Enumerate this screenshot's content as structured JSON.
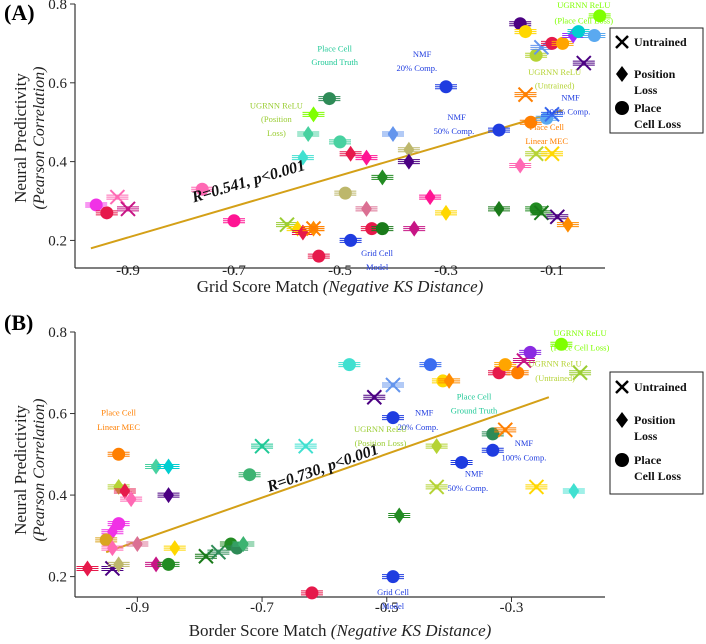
{
  "colors": {
    "trend": "#d4a017",
    "axis": "#333333",
    "palette": [
      "#e6194b",
      "#f032e6",
      "#ff69b4",
      "#9b30ff",
      "#4b0082",
      "#1f3ce0",
      "#3a6cf0",
      "#7b2fd0",
      "#2e8b57",
      "#3cb371",
      "#228b22",
      "#1a7a1a",
      "#48d1a0",
      "#20c997",
      "#7fff00",
      "#9acd32",
      "#b5d334",
      "#ffd700",
      "#ffa500",
      "#ff7f00",
      "#ff4500",
      "#dc143c",
      "#c71585",
      "#db7093",
      "#6495ed",
      "#5aa9f0",
      "#40e0d0",
      "#00ced1",
      "#6a5acd",
      "#8a2be2",
      "#ff1493",
      "#ff8c00",
      "#daa520",
      "#bdb76b",
      "#8fbc8f",
      "#5f9ea0",
      "#4682b4",
      "#bc8f8f",
      "#cd5c5c",
      "#800080"
    ]
  },
  "chart_data": [
    {
      "type": "scatter",
      "panel": "(A)",
      "xlabel": "Grid Score Match",
      "xlabel_italic": "(Negative KS Distance)",
      "ylabel": "Neural Predictivity",
      "ylabel_italic": "(Pearson Correlation)",
      "xlim": [
        -1.0,
        0.0
      ],
      "ylim": [
        0.13,
        0.8
      ],
      "xticks": [
        "-0.9",
        "-0.7",
        "-0.5",
        "-0.3",
        "-0.1"
      ],
      "xtick_values": [
        -0.9,
        -0.7,
        -0.5,
        -0.3,
        -0.1
      ],
      "yticks": [
        "0.2",
        "0.4",
        "0.6",
        "0.8"
      ],
      "ytick_values": [
        0.2,
        0.4,
        0.6,
        0.8
      ],
      "fit": {
        "x": [
          -0.97,
          -0.08
        ],
        "y": [
          0.18,
          0.53
        ],
        "label": "R=0.541, p<0.001"
      },
      "points": [
        {
          "x": -0.96,
          "y": 0.29,
          "m": "o",
          "c": 1
        },
        {
          "x": -0.94,
          "y": 0.27,
          "m": "o",
          "c": 0
        },
        {
          "x": -0.92,
          "y": 0.31,
          "m": "x",
          "c": 2
        },
        {
          "x": -0.9,
          "y": 0.28,
          "m": "x",
          "c": 22
        },
        {
          "x": -0.76,
          "y": 0.33,
          "m": "o",
          "c": 2
        },
        {
          "x": -0.7,
          "y": 0.25,
          "m": "o",
          "c": 30
        },
        {
          "x": -0.6,
          "y": 0.24,
          "m": "x",
          "c": 15
        },
        {
          "x": -0.58,
          "y": 0.23,
          "m": "d",
          "c": 17
        },
        {
          "x": -0.57,
          "y": 0.22,
          "m": "d",
          "c": 0
        },
        {
          "x": -0.55,
          "y": 0.23,
          "m": "d",
          "c": 31
        },
        {
          "x": -0.54,
          "y": 0.16,
          "m": "o",
          "c": 0
        },
        {
          "x": -0.55,
          "y": 0.23,
          "m": "x",
          "c": 19
        },
        {
          "x": -0.52,
          "y": 0.56,
          "m": "o",
          "c": 8
        },
        {
          "x": -0.55,
          "y": 0.52,
          "m": "d",
          "c": 14
        },
        {
          "x": -0.56,
          "y": 0.47,
          "m": "d",
          "c": 12
        },
        {
          "x": -0.57,
          "y": 0.41,
          "m": "d",
          "c": 26
        },
        {
          "x": -0.5,
          "y": 0.45,
          "m": "o",
          "c": 12
        },
        {
          "x": -0.48,
          "y": 0.42,
          "m": "d",
          "c": 0
        },
        {
          "x": -0.45,
          "y": 0.41,
          "m": "d",
          "c": 30
        },
        {
          "x": -0.49,
          "y": 0.32,
          "m": "o",
          "c": 33
        },
        {
          "x": -0.48,
          "y": 0.2,
          "m": "o",
          "c": 5
        },
        {
          "x": -0.45,
          "y": 0.28,
          "m": "d",
          "c": 23
        },
        {
          "x": -0.42,
          "y": 0.36,
          "m": "d",
          "c": 10
        },
        {
          "x": -0.4,
          "y": 0.47,
          "m": "d",
          "c": 24
        },
        {
          "x": -0.37,
          "y": 0.43,
          "m": "d",
          "c": 33
        },
        {
          "x": -0.37,
          "y": 0.4,
          "m": "d",
          "c": 4
        },
        {
          "x": -0.44,
          "y": 0.23,
          "m": "o",
          "c": 0
        },
        {
          "x": -0.42,
          "y": 0.23,
          "m": "o",
          "c": 11
        },
        {
          "x": -0.36,
          "y": 0.23,
          "m": "d",
          "c": 22
        },
        {
          "x": -0.33,
          "y": 0.31,
          "m": "d",
          "c": 30
        },
        {
          "x": -0.3,
          "y": 0.27,
          "m": "d",
          "c": 17
        },
        {
          "x": -0.3,
          "y": 0.59,
          "m": "o",
          "c": 5
        },
        {
          "x": -0.2,
          "y": 0.48,
          "m": "o",
          "c": 5
        },
        {
          "x": -0.2,
          "y": 0.28,
          "m": "d",
          "c": 11
        },
        {
          "x": -0.16,
          "y": 0.39,
          "m": "d",
          "c": 2
        },
        {
          "x": -0.13,
          "y": 0.28,
          "m": "o",
          "c": 10
        },
        {
          "x": -0.12,
          "y": 0.27,
          "m": "x",
          "c": 11
        },
        {
          "x": -0.09,
          "y": 0.26,
          "m": "x",
          "c": 4
        },
        {
          "x": -0.07,
          "y": 0.24,
          "m": "d",
          "c": 31
        },
        {
          "x": -0.13,
          "y": 0.42,
          "m": "x",
          "c": 16
        },
        {
          "x": -0.1,
          "y": 0.42,
          "m": "x",
          "c": 17
        },
        {
          "x": -0.15,
          "y": 0.57,
          "m": "x",
          "c": 19
        },
        {
          "x": -0.14,
          "y": 0.5,
          "m": "o",
          "c": 19
        },
        {
          "x": -0.11,
          "y": 0.51,
          "m": "o",
          "c": 25
        },
        {
          "x": -0.1,
          "y": 0.52,
          "m": "x",
          "c": 6
        },
        {
          "x": -0.16,
          "y": 0.75,
          "m": "o",
          "c": 4
        },
        {
          "x": -0.15,
          "y": 0.73,
          "m": "o",
          "c": 17
        },
        {
          "x": -0.13,
          "y": 0.67,
          "m": "o",
          "c": 16
        },
        {
          "x": -0.12,
          "y": 0.69,
          "m": "x",
          "c": 24
        },
        {
          "x": -0.1,
          "y": 0.7,
          "m": "o",
          "c": 0
        },
        {
          "x": -0.08,
          "y": 0.7,
          "m": "o",
          "c": 18
        },
        {
          "x": -0.06,
          "y": 0.72,
          "m": "d",
          "c": 3
        },
        {
          "x": -0.05,
          "y": 0.73,
          "m": "o",
          "c": 27
        },
        {
          "x": -0.04,
          "y": 0.65,
          "m": "x",
          "c": 4
        },
        {
          "x": -0.02,
          "y": 0.72,
          "m": "o",
          "c": 25
        },
        {
          "x": -0.01,
          "y": 0.77,
          "m": "o",
          "c": 14
        }
      ],
      "annotations": [
        {
          "text": "UGRNN ReLU",
          "x": -0.04,
          "y": 0.79,
          "c": 14
        },
        {
          "text": "(Place Cell Loss)",
          "x": -0.04,
          "y": 0.75,
          "c": 14
        },
        {
          "text": "Place Cell",
          "x": -0.51,
          "y": 0.68,
          "c": 13
        },
        {
          "text": "Ground Truth",
          "x": -0.51,
          "y": 0.645,
          "c": 13
        },
        {
          "text": "UGRNN ReLU",
          "x": -0.62,
          "y": 0.535,
          "c": 15
        },
        {
          "text": "(Position",
          "x": -0.62,
          "y": 0.5,
          "c": 15
        },
        {
          "text": "Loss)",
          "x": -0.62,
          "y": 0.465,
          "c": 15
        },
        {
          "text": "NMF",
          "x": -0.345,
          "y": 0.665,
          "c": 5
        },
        {
          "text": "20% Comp.",
          "x": -0.355,
          "y": 0.63,
          "c": 5
        },
        {
          "text": "UGRNN ReLU",
          "x": -0.095,
          "y": 0.62,
          "c": 16
        },
        {
          "text": "(Untrained)",
          "x": -0.095,
          "y": 0.585,
          "c": 16
        },
        {
          "text": "NMF",
          "x": -0.065,
          "y": 0.555,
          "c": 5
        },
        {
          "text": "100% Comp.",
          "x": -0.07,
          "y": 0.52,
          "c": 5
        },
        {
          "text": "NMF",
          "x": -0.28,
          "y": 0.505,
          "c": 5
        },
        {
          "text": "50% Comp.",
          "x": -0.285,
          "y": 0.47,
          "c": 5
        },
        {
          "text": "Place Cell",
          "x": -0.11,
          "y": 0.48,
          "c": 19
        },
        {
          "text": "Linear MEC",
          "x": -0.11,
          "y": 0.445,
          "c": 19
        },
        {
          "text": "Grid Cell",
          "x": -0.43,
          "y": 0.16,
          "c": 5
        },
        {
          "text": "Model",
          "x": -0.43,
          "y": 0.125,
          "c": 5
        }
      ]
    },
    {
      "type": "scatter",
      "panel": "(B)",
      "xlabel": "Border Score Match",
      "xlabel_italic": "(Negative KS Distance)",
      "ylabel": "Neural Predictivity",
      "ylabel_italic": "(Pearson Correlation)",
      "xlim": [
        -1.0,
        -0.15
      ],
      "ylim": [
        0.15,
        0.8
      ],
      "xticks": [
        "-0.9",
        "-0.7",
        "-0.5",
        "-0.3"
      ],
      "xtick_values": [
        -0.9,
        -0.7,
        -0.5,
        -0.3
      ],
      "yticks": [
        "0.2",
        "0.4",
        "0.6",
        "0.8"
      ],
      "ytick_values": [
        0.2,
        0.4,
        0.6,
        0.8
      ],
      "fit": {
        "x": [
          -0.95,
          -0.24
        ],
        "y": [
          0.26,
          0.64
        ],
        "label": "R=0.730, p<0.001"
      },
      "points": [
        {
          "x": -0.98,
          "y": 0.22,
          "m": "d",
          "c": 0
        },
        {
          "x": -0.94,
          "y": 0.22,
          "m": "x",
          "c": 4
        },
        {
          "x": -0.93,
          "y": 0.23,
          "m": "d",
          "c": 33
        },
        {
          "x": -0.93,
          "y": 0.5,
          "m": "o",
          "c": 19
        },
        {
          "x": -0.93,
          "y": 0.42,
          "m": "d",
          "c": 16
        },
        {
          "x": -0.92,
          "y": 0.41,
          "m": "d",
          "c": 0
        },
        {
          "x": -0.91,
          "y": 0.39,
          "m": "d",
          "c": 2
        },
        {
          "x": -0.93,
          "y": 0.33,
          "m": "o",
          "c": 1
        },
        {
          "x": -0.94,
          "y": 0.31,
          "m": "d",
          "c": 1
        },
        {
          "x": -0.95,
          "y": 0.29,
          "m": "o",
          "c": 32
        },
        {
          "x": -0.94,
          "y": 0.27,
          "m": "d",
          "c": 2
        },
        {
          "x": -0.9,
          "y": 0.28,
          "m": "d",
          "c": 23
        },
        {
          "x": -0.87,
          "y": 0.23,
          "m": "d",
          "c": 22
        },
        {
          "x": -0.85,
          "y": 0.23,
          "m": "o",
          "c": 10
        },
        {
          "x": -0.87,
          "y": 0.47,
          "m": "d",
          "c": 12
        },
        {
          "x": -0.85,
          "y": 0.47,
          "m": "d",
          "c": 27
        },
        {
          "x": -0.85,
          "y": 0.4,
          "m": "d",
          "c": 4
        },
        {
          "x": -0.84,
          "y": 0.27,
          "m": "d",
          "c": 17
        },
        {
          "x": -0.79,
          "y": 0.25,
          "m": "x",
          "c": 11
        },
        {
          "x": -0.77,
          "y": 0.26,
          "m": "x",
          "c": 8
        },
        {
          "x": -0.75,
          "y": 0.28,
          "m": "o",
          "c": 10
        },
        {
          "x": -0.74,
          "y": 0.27,
          "m": "o",
          "c": 8
        },
        {
          "x": -0.73,
          "y": 0.28,
          "m": "d",
          "c": 9
        },
        {
          "x": -0.72,
          "y": 0.45,
          "m": "o",
          "c": 9
        },
        {
          "x": -0.7,
          "y": 0.52,
          "m": "x",
          "c": 13
        },
        {
          "x": -0.63,
          "y": 0.52,
          "m": "x",
          "c": 26
        },
        {
          "x": -0.62,
          "y": 0.16,
          "m": "o",
          "c": 0
        },
        {
          "x": -0.56,
          "y": 0.72,
          "m": "o",
          "c": 26
        },
        {
          "x": -0.52,
          "y": 0.64,
          "m": "x",
          "c": 4
        },
        {
          "x": -0.49,
          "y": 0.67,
          "m": "x",
          "c": 24
        },
        {
          "x": -0.49,
          "y": 0.59,
          "m": "o",
          "c": 5
        },
        {
          "x": -0.48,
          "y": 0.35,
          "m": "d",
          "c": 10
        },
        {
          "x": -0.49,
          "y": 0.2,
          "m": "o",
          "c": 5
        },
        {
          "x": -0.43,
          "y": 0.72,
          "m": "o",
          "c": 6
        },
        {
          "x": -0.41,
          "y": 0.68,
          "m": "o",
          "c": 17
        },
        {
          "x": -0.4,
          "y": 0.68,
          "m": "d",
          "c": 31
        },
        {
          "x": -0.42,
          "y": 0.52,
          "m": "d",
          "c": 16
        },
        {
          "x": -0.38,
          "y": 0.48,
          "m": "o",
          "c": 5
        },
        {
          "x": -0.42,
          "y": 0.42,
          "m": "x",
          "c": 16
        },
        {
          "x": -0.33,
          "y": 0.51,
          "m": "o",
          "c": 5
        },
        {
          "x": -0.33,
          "y": 0.55,
          "m": "o",
          "c": 8
        },
        {
          "x": -0.31,
          "y": 0.56,
          "m": "x",
          "c": 19
        },
        {
          "x": -0.32,
          "y": 0.7,
          "m": "o",
          "c": 0
        },
        {
          "x": -0.31,
          "y": 0.72,
          "m": "o",
          "c": 18
        },
        {
          "x": -0.29,
          "y": 0.7,
          "m": "o",
          "c": 19
        },
        {
          "x": -0.28,
          "y": 0.73,
          "m": "x",
          "c": 22
        },
        {
          "x": -0.27,
          "y": 0.75,
          "m": "o",
          "c": 29
        },
        {
          "x": -0.26,
          "y": 0.42,
          "m": "x",
          "c": 17
        },
        {
          "x": -0.22,
          "y": 0.77,
          "m": "o",
          "c": 14
        },
        {
          "x": -0.19,
          "y": 0.7,
          "m": "x",
          "c": 15
        },
        {
          "x": -0.2,
          "y": 0.41,
          "m": "d",
          "c": 26
        }
      ],
      "annotations": [
        {
          "text": "UGRNN ReLU",
          "x": -0.19,
          "y": 0.79,
          "c": 14
        },
        {
          "text": "(Place Cell Loss)",
          "x": -0.19,
          "y": 0.755,
          "c": 14
        },
        {
          "text": "Place Cell",
          "x": -0.93,
          "y": 0.595,
          "c": 19
        },
        {
          "text": "Linear MEC",
          "x": -0.93,
          "y": 0.56,
          "c": 19
        },
        {
          "text": "UGRNN ReLU",
          "x": -0.23,
          "y": 0.715,
          "c": 16
        },
        {
          "text": "(Untrained)",
          "x": -0.23,
          "y": 0.68,
          "c": 16
        },
        {
          "text": "Place Cell",
          "x": -0.36,
          "y": 0.635,
          "c": 13
        },
        {
          "text": "Ground Truth",
          "x": -0.36,
          "y": 0.6,
          "c": 13
        },
        {
          "text": "NMF",
          "x": -0.44,
          "y": 0.595,
          "c": 5
        },
        {
          "text": "20% Comp.",
          "x": -0.45,
          "y": 0.56,
          "c": 5
        },
        {
          "text": "UGRNN ReLU",
          "x": -0.51,
          "y": 0.555,
          "c": 15
        },
        {
          "text": "(Position Loss)",
          "x": -0.51,
          "y": 0.52,
          "c": 15
        },
        {
          "text": "NMF",
          "x": -0.28,
          "y": 0.52,
          "c": 5
        },
        {
          "text": "100% Comp.",
          "x": -0.28,
          "y": 0.485,
          "c": 5
        },
        {
          "text": "NMF",
          "x": -0.36,
          "y": 0.445,
          "c": 5
        },
        {
          "text": "50% Comp.",
          "x": -0.37,
          "y": 0.41,
          "c": 5
        },
        {
          "text": "Grid Cell",
          "x": -0.49,
          "y": 0.155,
          "c": 5
        },
        {
          "text": "Model",
          "x": -0.49,
          "y": 0.12,
          "c": 5
        }
      ]
    }
  ],
  "legend": {
    "items": [
      {
        "marker": "x",
        "label": "Untrained",
        "label2": ""
      },
      {
        "marker": "d",
        "label": "Position",
        "label2": "Loss"
      },
      {
        "marker": "o",
        "label": "Place",
        "label2": "Cell Loss"
      }
    ]
  }
}
